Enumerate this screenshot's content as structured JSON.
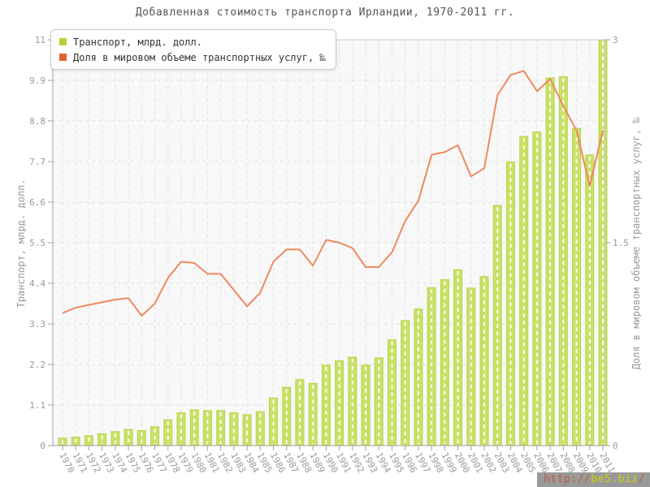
{
  "title": "Добавленная стоимость транспорта Ирландии, 1970-2011 гг.",
  "legend": {
    "items": [
      {
        "label": "Транспорт, млрд. долл.",
        "color": "#b5d334"
      },
      {
        "label": "Доля в мировом объеме транспортных услуг, ‰",
        "color": "#e2622e"
      }
    ]
  },
  "watermark": {
    "parts": [
      {
        "text": "http://",
        "color": "#c05b3c"
      },
      {
        "text": "be5.biz",
        "color": "#c8d400"
      },
      {
        "text": "/",
        "color": "#c05b3c"
      }
    ]
  },
  "colors": {
    "bar_fill": "#c9e167",
    "bar_stroke": "#b7d54e",
    "bar_stripe": "#ffffff",
    "line": "#ee8960",
    "grid": "#e2e2e2",
    "frame": "#cccccc",
    "axis": "#a0a0a0",
    "tick_text": "#999999",
    "title_text": "#555555",
    "plot_bg": "#f8f8f8",
    "watermark_bg": "#999999"
  },
  "chart_data": {
    "type": "bar",
    "title": "Добавленная стоимость транспорта Ирландии, 1970-2011 гг.",
    "categories": [
      1970,
      1971,
      1972,
      1973,
      1974,
      1975,
      1976,
      1977,
      1978,
      1979,
      1980,
      1981,
      1982,
      1983,
      1984,
      1985,
      1986,
      1987,
      1988,
      1989,
      1990,
      1991,
      1992,
      1993,
      1994,
      1995,
      1996,
      1997,
      1998,
      1999,
      2000,
      2001,
      2002,
      2003,
      2004,
      2005,
      2006,
      2007,
      2008,
      2009,
      2010,
      2011
    ],
    "series": [
      {
        "name": "Транспорт, млрд. долл.",
        "type": "bar",
        "axis": "left",
        "values": [
          0.2,
          0.23,
          0.27,
          0.32,
          0.38,
          0.44,
          0.41,
          0.51,
          0.7,
          0.89,
          0.97,
          0.95,
          0.95,
          0.89,
          0.84,
          0.92,
          1.29,
          1.58,
          1.79,
          1.69,
          2.18,
          2.3,
          2.4,
          2.18,
          2.38,
          2.87,
          3.39,
          3.7,
          4.28,
          4.5,
          4.77,
          4.27,
          4.58,
          6.51,
          7.69,
          8.38,
          8.5,
          9.97,
          10.0,
          8.6,
          7.88,
          11.0
        ]
      },
      {
        "name": "Доля в мировом объеме транспортных услуг, ‰",
        "type": "line",
        "axis": "right",
        "values": [
          0.98,
          1.02,
          1.04,
          1.06,
          1.08,
          1.09,
          0.96,
          1.05,
          1.24,
          1.36,
          1.35,
          1.27,
          1.27,
          1.15,
          1.03,
          1.13,
          1.36,
          1.45,
          1.45,
          1.33,
          1.52,
          1.5,
          1.46,
          1.32,
          1.32,
          1.43,
          1.66,
          1.81,
          2.15,
          2.17,
          2.22,
          1.99,
          2.05,
          2.59,
          2.74,
          2.77,
          2.62,
          2.71,
          2.51,
          2.33,
          1.92,
          2.33
        ]
      }
    ],
    "left_axis": {
      "label": "Транспорт, млрд. долл.",
      "min": 0,
      "max": 11,
      "tick_step": 1.1,
      "tick_labels": [
        "0",
        "1.1",
        "2.2",
        "3.3",
        "4.4",
        "5.5",
        "6.6",
        "7.7",
        "8.8",
        "9.9",
        "11"
      ]
    },
    "right_axis": {
      "label": "Доля в мировом объеме транспортных услуг, ‰",
      "min": 0,
      "max": 3,
      "ticks": [
        0,
        1.5,
        3
      ],
      "tick_labels": [
        "0",
        "1.5",
        "3"
      ]
    },
    "grid": true,
    "legend_position": "top-left"
  }
}
